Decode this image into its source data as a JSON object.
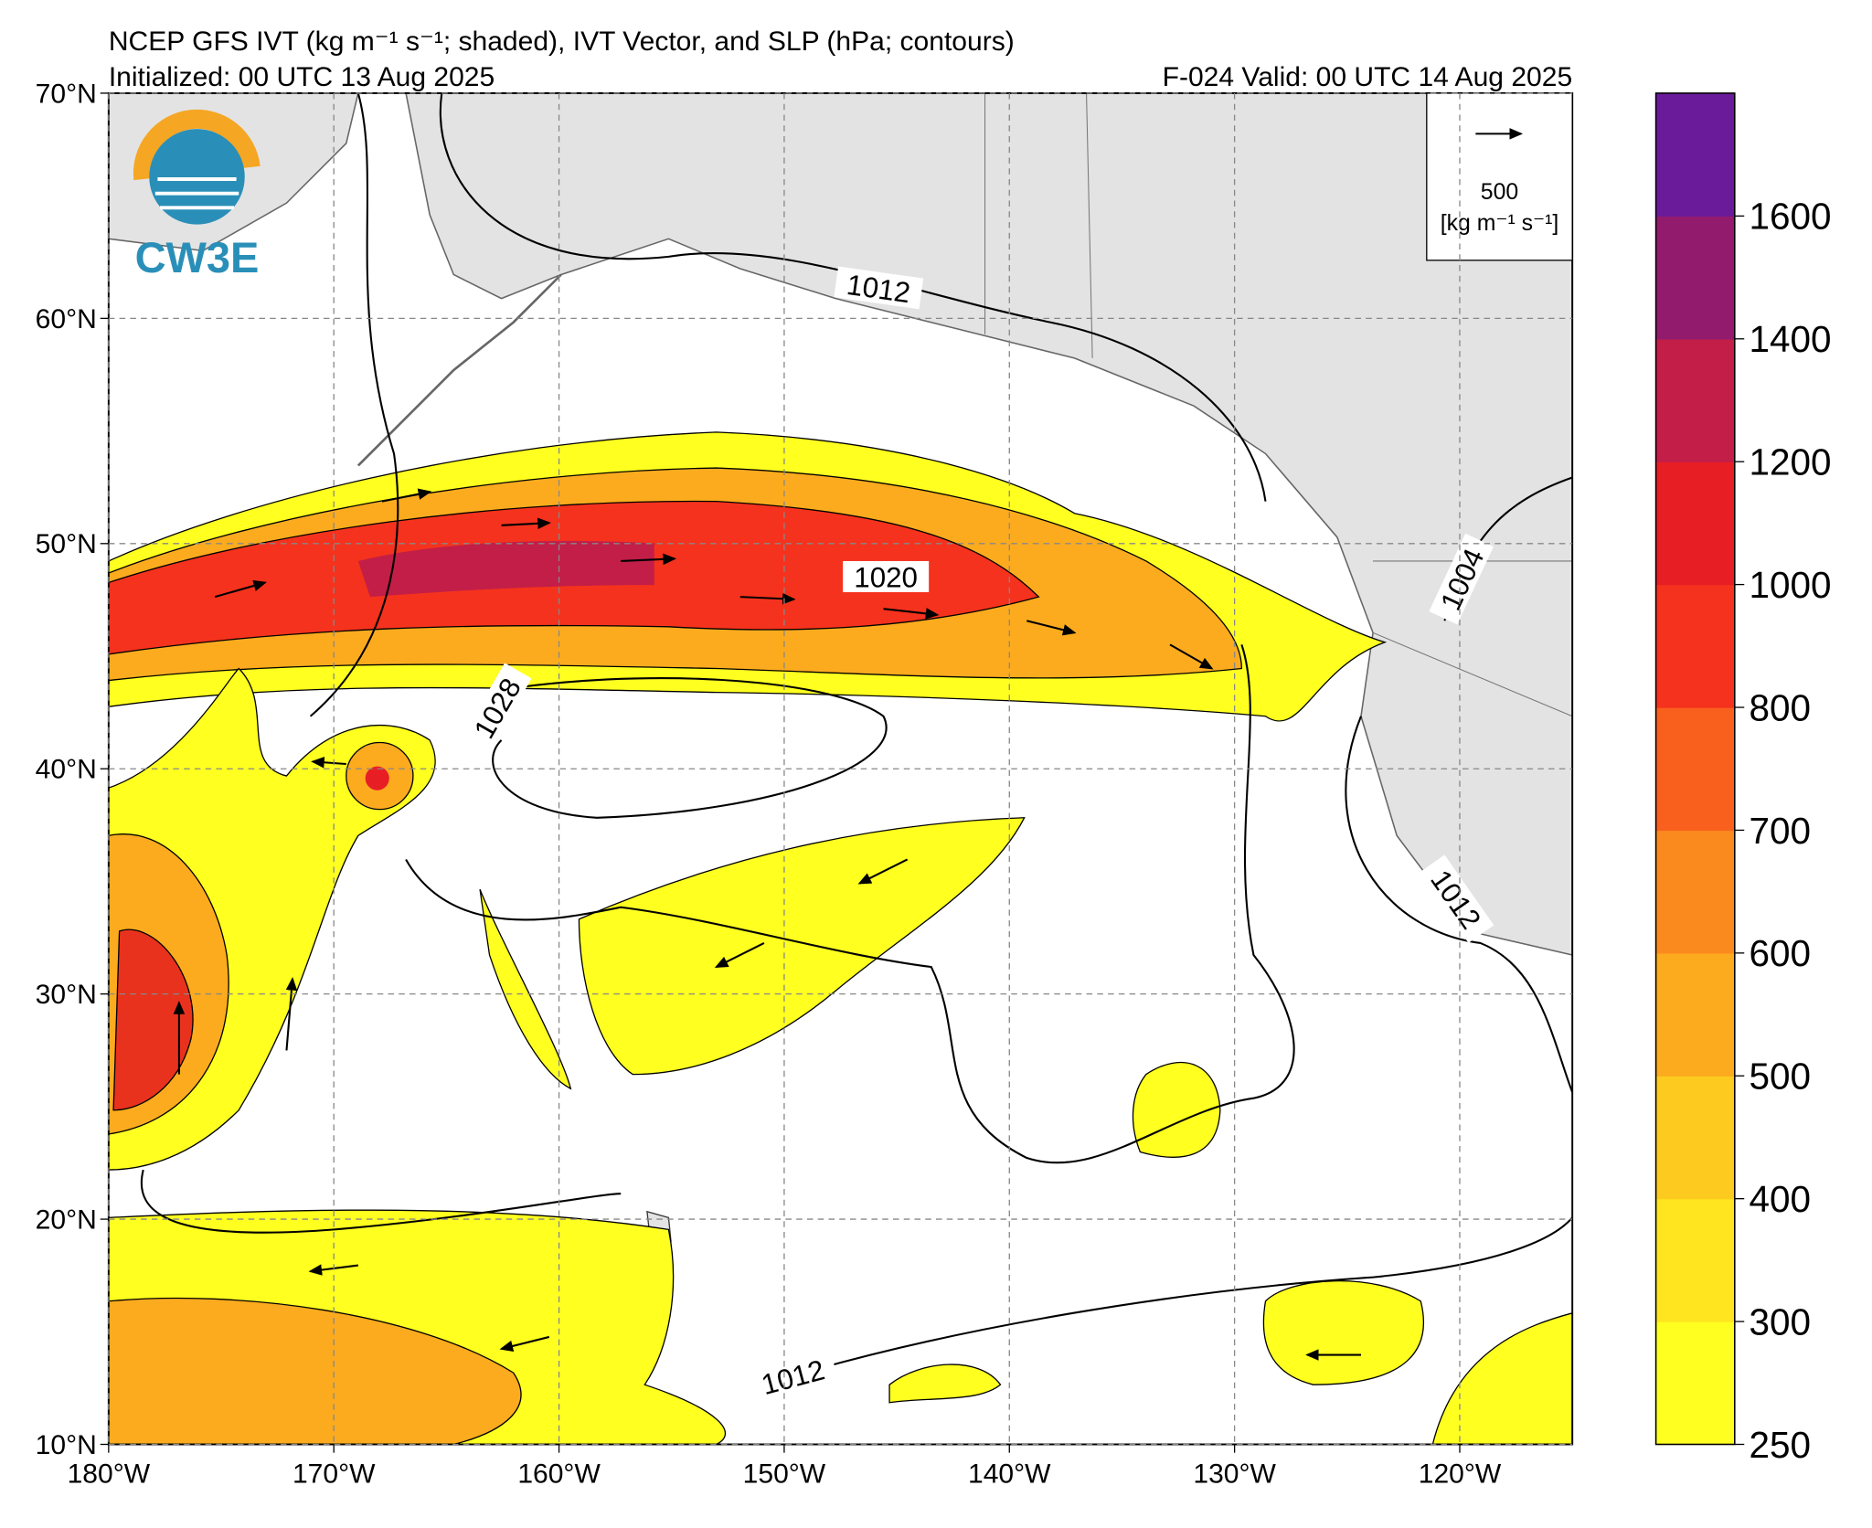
{
  "header": {
    "title": "NCEP GFS IVT (kg m⁻¹ s⁻¹; shaded), IVT Vector, and SLP (hPa; contours)",
    "initialized": "Initialized: 00 UTC 13 Aug 2025",
    "valid": "F-024  Valid: 00 UTC 14 Aug 2025"
  },
  "logo": "CW3E",
  "map": {
    "xlim": [
      -180,
      -115
    ],
    "ylim": [
      10,
      70
    ],
    "xticks": [
      {
        "value": -180,
        "label": "180°W"
      },
      {
        "value": -170,
        "label": "170°W"
      },
      {
        "value": -160,
        "label": "160°W"
      },
      {
        "value": -150,
        "label": "150°W"
      },
      {
        "value": -140,
        "label": "140°W"
      },
      {
        "value": -130,
        "label": "130°W"
      },
      {
        "value": -120,
        "label": "120°W"
      }
    ],
    "yticks": [
      {
        "value": 10,
        "label": "10°N"
      },
      {
        "value": 20,
        "label": "20°N"
      },
      {
        "value": 30,
        "label": "30°N"
      },
      {
        "value": 40,
        "label": "40°N"
      },
      {
        "value": 50,
        "label": "50°N"
      },
      {
        "value": 60,
        "label": "60°N"
      },
      {
        "value": 70,
        "label": "70°N"
      }
    ],
    "grid": true,
    "contour_labels": [
      "1012",
      "1020",
      "1028",
      "1004",
      "1012",
      "1012"
    ]
  },
  "legend": {
    "value": "500",
    "units": "[kg m⁻¹ s⁻¹]"
  },
  "colorbar": {
    "ticks": [
      250,
      300,
      400,
      500,
      600,
      700,
      800,
      1000,
      1200,
      1400,
      1600
    ],
    "colors": [
      "#ffff20",
      "#fee51f",
      "#fdcb1f",
      "#fcab1e",
      "#fb8a1e",
      "#f9601d",
      "#f5321d",
      "#e81e25",
      "#c21e48",
      "#921b6e",
      "#6a1b9a"
    ]
  }
}
